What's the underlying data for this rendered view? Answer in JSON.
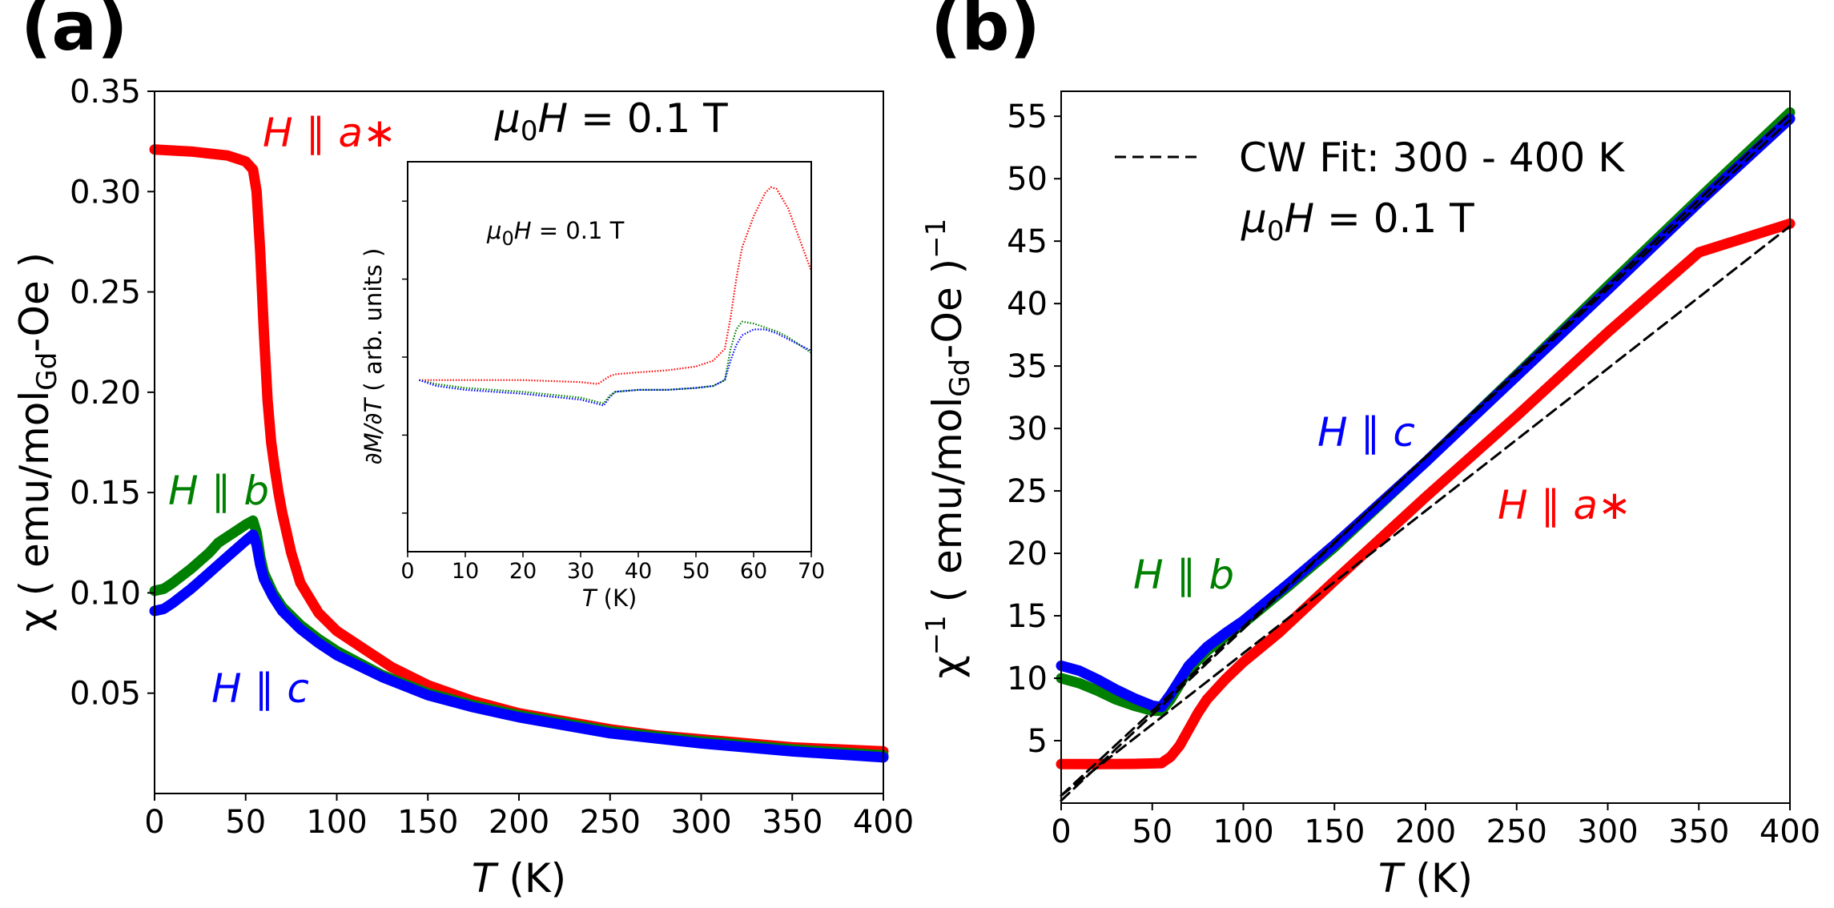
{
  "chart_data": [
    {
      "id": "a",
      "type": "scatter",
      "panel_label": "(a)",
      "xlabel_italic": "T",
      "xlabel_unit": " (K)",
      "ylabel": "χ ( emu/molGd-Oe )",
      "ylabel_parts": [
        "χ ( emu/mol",
        "Gd",
        "-Oe )"
      ],
      "xlim": [
        0,
        400
      ],
      "ylim": [
        0,
        0.35
      ],
      "xticks": [
        0,
        50,
        100,
        150,
        200,
        250,
        300,
        350,
        400
      ],
      "yticks": [
        0.05,
        0.1,
        0.15,
        0.2,
        0.25,
        0.3,
        0.35
      ],
      "ytick_labels": [
        "0.05",
        "0.10",
        "0.15",
        "0.20",
        "0.25",
        "0.30",
        "0.35"
      ],
      "field_annotation": "μ0H = 0.1 T",
      "series": [
        {
          "name": "H ∥ a*",
          "color": "#ff0000",
          "x": [
            0,
            20,
            40,
            50,
            54,
            56,
            58,
            60,
            62,
            64,
            66,
            68,
            70,
            75,
            80,
            90,
            100,
            110,
            120,
            130,
            150,
            175,
            200,
            225,
            250,
            275,
            300,
            325,
            350,
            375,
            400
          ],
          "y": [
            0.321,
            0.32,
            0.318,
            0.315,
            0.311,
            0.3,
            0.27,
            0.23,
            0.196,
            0.175,
            0.162,
            0.15,
            0.14,
            0.12,
            0.105,
            0.09,
            0.081,
            0.075,
            0.069,
            0.063,
            0.054,
            0.046,
            0.04,
            0.036,
            0.032,
            0.029,
            0.027,
            0.025,
            0.023,
            0.022,
            0.021
          ]
        },
        {
          "name": "H ∥ b",
          "color": "#008000",
          "x": [
            0,
            5,
            10,
            20,
            30,
            35,
            40,
            45,
            50,
            54,
            56,
            58,
            60,
            65,
            70,
            80,
            90,
            100,
            125,
            150,
            175,
            200,
            250,
            300,
            350,
            400
          ],
          "y": [
            0.101,
            0.102,
            0.105,
            0.112,
            0.12,
            0.125,
            0.128,
            0.131,
            0.134,
            0.136,
            0.13,
            0.118,
            0.11,
            0.1,
            0.093,
            0.084,
            0.077,
            0.071,
            0.059,
            0.05,
            0.044,
            0.039,
            0.031,
            0.026,
            0.022,
            0.019
          ]
        },
        {
          "name": "H ∥ c",
          "color": "#0000ff",
          "x": [
            0,
            5,
            10,
            20,
            30,
            35,
            40,
            45,
            50,
            54,
            56,
            58,
            60,
            65,
            70,
            80,
            90,
            100,
            125,
            150,
            175,
            200,
            250,
            300,
            350,
            400
          ],
          "y": [
            0.091,
            0.092,
            0.095,
            0.102,
            0.11,
            0.114,
            0.118,
            0.122,
            0.126,
            0.129,
            0.124,
            0.114,
            0.107,
            0.098,
            0.091,
            0.082,
            0.075,
            0.069,
            0.058,
            0.049,
            0.043,
            0.038,
            0.03,
            0.025,
            0.021,
            0.018
          ]
        }
      ],
      "series_labels": [
        {
          "prefix": "H ∥ ",
          "suffix": "a∗",
          "color": "#ff0000"
        },
        {
          "prefix": "H ∥ ",
          "suffix": "b",
          "color": "#008000"
        },
        {
          "prefix": "H ∥ ",
          "suffix": "c",
          "color": "#0000ff"
        }
      ]
    },
    {
      "id": "a-inset",
      "type": "scatter",
      "ylabel": "∂M/∂T ( arb. units )",
      "xlabel_italic": "T",
      "xlabel_unit": " (K)",
      "xlim": [
        0,
        70
      ],
      "ylim": [
        0,
        1
      ],
      "xticks": [
        0,
        10,
        20,
        30,
        40,
        50,
        60,
        70
      ],
      "field_annotation": "μ0H = 0.1 T",
      "series": [
        {
          "name": "H ∥ a*",
          "color": "#ff0000",
          "x": [
            2,
            10,
            20,
            30,
            33,
            34,
            35,
            36,
            40,
            45,
            50,
            53,
            55,
            56,
            57,
            58,
            60,
            62,
            63,
            64,
            66,
            68,
            70
          ],
          "y": [
            0.44,
            0.44,
            0.44,
            0.435,
            0.43,
            0.44,
            0.45,
            0.455,
            0.46,
            0.465,
            0.475,
            0.49,
            0.52,
            0.6,
            0.7,
            0.78,
            0.86,
            0.92,
            0.935,
            0.93,
            0.88,
            0.8,
            0.72
          ]
        },
        {
          "name": "H ∥ b",
          "color": "#008000",
          "x": [
            2,
            5,
            10,
            20,
            30,
            34,
            35,
            36,
            40,
            45,
            50,
            53,
            55,
            56,
            57,
            58,
            60,
            62,
            64,
            66,
            68,
            70
          ],
          "y": [
            0.44,
            0.43,
            0.42,
            0.41,
            0.395,
            0.38,
            0.4,
            0.41,
            0.415,
            0.415,
            0.42,
            0.425,
            0.44,
            0.52,
            0.57,
            0.59,
            0.585,
            0.575,
            0.565,
            0.55,
            0.53,
            0.51
          ]
        },
        {
          "name": "H ∥ c",
          "color": "#0000ff",
          "x": [
            2,
            5,
            10,
            20,
            30,
            34,
            35,
            36,
            40,
            45,
            50,
            53,
            55,
            56,
            57,
            58,
            60,
            62,
            64,
            66,
            68,
            70
          ],
          "y": [
            0.44,
            0.425,
            0.415,
            0.405,
            0.39,
            0.375,
            0.395,
            0.41,
            0.415,
            0.415,
            0.42,
            0.425,
            0.44,
            0.49,
            0.53,
            0.555,
            0.57,
            0.57,
            0.56,
            0.545,
            0.53,
            0.515
          ]
        }
      ]
    },
    {
      "id": "b",
      "type": "scatter",
      "panel_label": "(b)",
      "xlabel_italic": "T",
      "xlabel_unit": " (K)",
      "ylabel": "χ−1 ( emu/molGd-Oe )−1",
      "ylabel_parts": [
        "χ",
        "−1",
        " ( emu/mol",
        "Gd",
        "-Oe )",
        "−1"
      ],
      "xlim": [
        0,
        400
      ],
      "ylim": [
        0,
        57
      ],
      "xticks": [
        0,
        50,
        100,
        150,
        200,
        250,
        300,
        350,
        400
      ],
      "yticks": [
        5,
        10,
        15,
        20,
        25,
        30,
        35,
        40,
        45,
        50,
        55
      ],
      "legend": "CW Fit: 300 - 400 K",
      "legend_loc": "upper-left",
      "field_annotation": "μ0H = 0.1 T",
      "series": [
        {
          "name": "H ∥ a*",
          "color": "#ff0000",
          "x": [
            0,
            20,
            40,
            55,
            60,
            65,
            70,
            75,
            80,
            90,
            100,
            120,
            150,
            200,
            250,
            300,
            350,
            400
          ],
          "y": [
            3.12,
            3.13,
            3.14,
            3.2,
            3.7,
            4.6,
            5.9,
            7.2,
            8.3,
            9.9,
            11.3,
            13.7,
            17.8,
            24.5,
            31.0,
            37.7,
            44.1,
            46.4
          ]
        },
        {
          "name": "H ∥ b",
          "color": "#008000",
          "x": [
            0,
            10,
            20,
            30,
            40,
            50,
            55,
            60,
            70,
            80,
            90,
            100,
            125,
            150,
            200,
            250,
            300,
            350,
            400
          ],
          "y": [
            10.0,
            9.6,
            9.0,
            8.3,
            7.8,
            7.4,
            7.4,
            8.3,
            10.7,
            12.2,
            13.3,
            14.4,
            17.4,
            20.5,
            27.3,
            34.3,
            41.4,
            48.4,
            55.3
          ]
        },
        {
          "name": "H ∥ c",
          "color": "#0000ff",
          "x": [
            0,
            10,
            20,
            30,
            40,
            50,
            55,
            60,
            70,
            80,
            90,
            100,
            125,
            150,
            200,
            250,
            300,
            350,
            400
          ],
          "y": [
            11.0,
            10.6,
            9.9,
            9.1,
            8.4,
            7.8,
            7.7,
            8.7,
            11.0,
            12.5,
            13.6,
            14.6,
            17.6,
            20.7,
            27.3,
            34.2,
            41.1,
            48.1,
            54.8
          ]
        },
        {
          "name": "CW Fit: 300 - 400 K (a*)",
          "color": "#000000",
          "dashed": true,
          "x": [
            0,
            400
          ],
          "y": [
            0.6,
            46.2
          ]
        },
        {
          "name": "CW Fit: 300 - 400 K (b)",
          "color": "#000000",
          "dashed": true,
          "x": [
            0,
            400
          ],
          "y": [
            0.2,
            55.2
          ]
        },
        {
          "name": "CW Fit: 300 - 400 K (c)",
          "color": "#000000",
          "dashed": true,
          "x": [
            0,
            400
          ],
          "y": [
            0.6,
            54.7
          ]
        }
      ],
      "series_labels": [
        {
          "prefix": "H ∥ ",
          "suffix": "a∗",
          "color": "#ff0000"
        },
        {
          "prefix": "H ∥ ",
          "suffix": "b",
          "color": "#008000"
        },
        {
          "prefix": "H ∥ ",
          "suffix": "c",
          "color": "#0000ff"
        }
      ]
    }
  ]
}
